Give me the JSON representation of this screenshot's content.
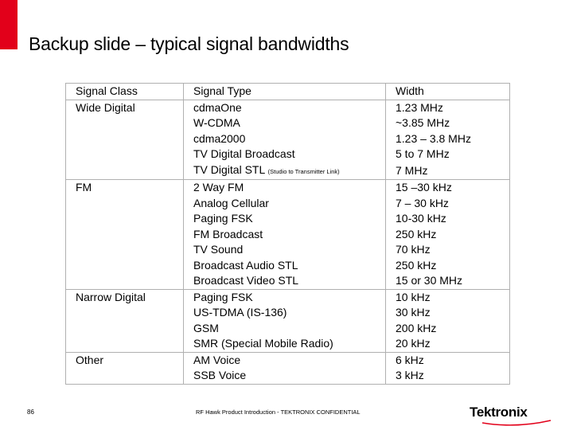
{
  "title": "Backup slide – typical signal bandwidths",
  "headers": {
    "class": "Signal Class",
    "type": "Signal Type",
    "width": "Width"
  },
  "rows": [
    {
      "class": "Wide Digital",
      "type": "cdmaOne",
      "width": "1.23 MHz"
    },
    {
      "class": "",
      "type": "W-CDMA",
      "width": "~3.85 MHz"
    },
    {
      "class": "",
      "type": "cdma2000",
      "width": "1.23 – 3.8 MHz"
    },
    {
      "class": "",
      "type": "TV Digital Broadcast",
      "width": "5 to 7 MHz"
    },
    {
      "class": "",
      "type": "TV Digital STL",
      "note": "(Studio to Transmitter Link)",
      "width": "7 MHz"
    },
    {
      "class": "FM",
      "type": "2 Way FM",
      "width": "15 –30 kHz"
    },
    {
      "class": "",
      "type": "Analog Cellular",
      "width": "7 – 30 kHz"
    },
    {
      "class": "",
      "type": "Paging FSK",
      "width": "10-30 kHz"
    },
    {
      "class": "",
      "type": "FM Broadcast",
      "width": "250 kHz"
    },
    {
      "class": "",
      "type": "TV Sound",
      "width": "70 kHz"
    },
    {
      "class": "",
      "type": "Broadcast Audio STL",
      "width": "250 kHz"
    },
    {
      "class": "",
      "type": "Broadcast Video STL",
      "width": "15 or 30 MHz"
    },
    {
      "class": "Narrow Digital",
      "type": "Paging FSK",
      "width": "10 kHz"
    },
    {
      "class": "",
      "type": "US-TDMA (IS-136)",
      "width": "30 kHz"
    },
    {
      "class": "",
      "type": "GSM",
      "width": "200 kHz"
    },
    {
      "class": "",
      "type": "SMR (Special Mobile Radio)",
      "width": "20 kHz"
    },
    {
      "class": "Other",
      "type": "AM Voice",
      "width": "6 kHz"
    },
    {
      "class": "",
      "type": "SSB Voice",
      "width": "3 kHz"
    }
  ],
  "footer": {
    "page_number": "86",
    "text": "RF Hawk Product Introduction - TEKTRONIX CONFIDENTIAL",
    "logo_text": "Tektronix"
  },
  "colors": {
    "accent": "#e2001a",
    "rule": "#b0b0b0"
  }
}
